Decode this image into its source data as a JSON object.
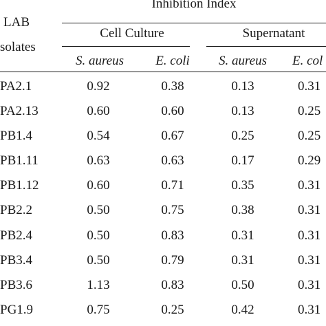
{
  "header": {
    "lab_line1": "LAB",
    "lab_line2": "solates",
    "inhibition_index": "Inhibition Index",
    "cell_culture": "Cell Culture",
    "supernatant": "Supernatant",
    "s_aureus": "S. aureus",
    "e_coli": "E. coli",
    "s_aureus_2": "S. aureus",
    "e_coli_2": "E. col"
  },
  "rows": [
    {
      "isolate": "PA2.1",
      "cc_sa": "0.92",
      "cc_ec": "0.38",
      "sn_sa": "0.13",
      "sn_ec": "0.31"
    },
    {
      "isolate": "PA2.13",
      "cc_sa": "0.60",
      "cc_ec": "0.60",
      "sn_sa": "0.13",
      "sn_ec": "0.25"
    },
    {
      "isolate": "PB1.4",
      "cc_sa": "0.54",
      "cc_ec": "0.67",
      "sn_sa": "0.25",
      "sn_ec": "0.25"
    },
    {
      "isolate": "PB1.11",
      "cc_sa": "0.63",
      "cc_ec": "0.63",
      "sn_sa": "0.17",
      "sn_ec": "0.29"
    },
    {
      "isolate": "PB1.12",
      "cc_sa": "0.60",
      "cc_ec": "0.71",
      "sn_sa": "0.35",
      "sn_ec": "0.31"
    },
    {
      "isolate": "PB2.2",
      "cc_sa": "0.50",
      "cc_ec": "0.75",
      "sn_sa": "0.38",
      "sn_ec": "0.31"
    },
    {
      "isolate": "PB2.4",
      "cc_sa": "0.50",
      "cc_ec": "0.83",
      "sn_sa": "0.31",
      "sn_ec": "0.31"
    },
    {
      "isolate": "PB3.4",
      "cc_sa": "0.50",
      "cc_ec": "0.79",
      "sn_sa": "0.31",
      "sn_ec": "0.31"
    },
    {
      "isolate": "PB3.6",
      "cc_sa": "1.13",
      "cc_ec": "0.83",
      "sn_sa": "0.50",
      "sn_ec": "0.31"
    },
    {
      "isolate": "PG1.9",
      "cc_sa": "0.75",
      "cc_ec": "0.25",
      "sn_sa": "0.42",
      "sn_ec": "0.31"
    }
  ]
}
